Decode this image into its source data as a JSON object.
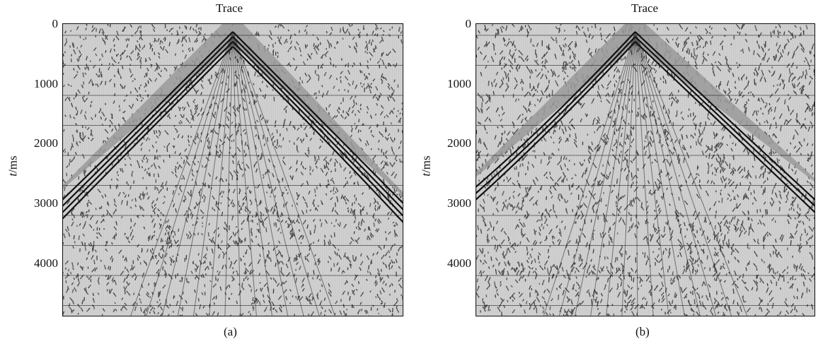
{
  "panels": [
    {
      "id": "a",
      "title": "Trace",
      "caption": "(a)",
      "ylabel_italic": "t",
      "ylabel_unit": "/ms",
      "yticks": [
        "0",
        "1000",
        "2000",
        "3000",
        "4000"
      ]
    },
    {
      "id": "b",
      "title": "Trace",
      "caption": "(b)",
      "ylabel_italic": "t",
      "ylabel_unit": "/ms",
      "yticks": [
        "0",
        "1000",
        "2000",
        "3000",
        "4000"
      ]
    }
  ],
  "colors": {
    "ink": "#111111",
    "paper": "#ffffff",
    "gap_gray": "#9a9a9a"
  }
}
